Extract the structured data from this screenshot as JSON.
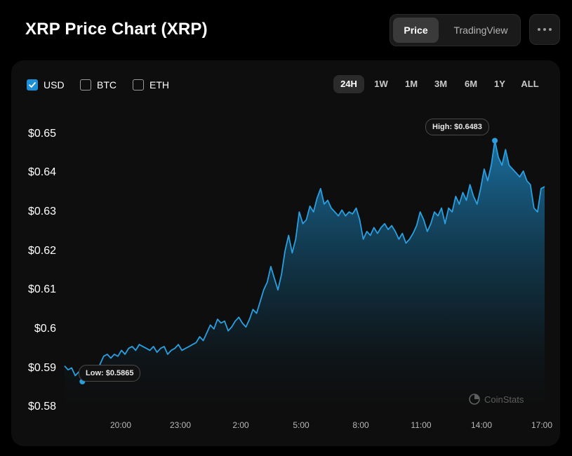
{
  "title": "XRP Price Chart (XRP)",
  "view_toggle": {
    "options": [
      "Price",
      "TradingView"
    ],
    "selected": "Price"
  },
  "more_icon": "ellipsis-icon",
  "currencies": [
    {
      "label": "USD",
      "checked": true
    },
    {
      "label": "BTC",
      "checked": false
    },
    {
      "label": "ETH",
      "checked": false
    }
  ],
  "ranges": [
    "24H",
    "1W",
    "1M",
    "3M",
    "6M",
    "1Y",
    "ALL"
  ],
  "active_range": "24H",
  "watermark": "CoinStats",
  "colors": {
    "line": "#2a9fe0",
    "accent": "#1d8fd6",
    "background": "#000000",
    "card": "#0e0e0e"
  },
  "chart_data": {
    "type": "area",
    "ylim": [
      0.58,
      0.65
    ],
    "y_ticks": [
      {
        "value": 0.65,
        "label": "$0.65"
      },
      {
        "value": 0.64,
        "label": "$0.64"
      },
      {
        "value": 0.63,
        "label": "$0.63"
      },
      {
        "value": 0.62,
        "label": "$0.62"
      },
      {
        "value": 0.61,
        "label": "$0.61"
      },
      {
        "value": 0.6,
        "label": "$0.6"
      },
      {
        "value": 0.59,
        "label": "$0.59"
      },
      {
        "value": 0.58,
        "label": "$0.58"
      }
    ],
    "x_ticks": [
      "20:00",
      "23:00",
      "2:00",
      "5:00",
      "8:00",
      "11:00",
      "14:00",
      "17:00"
    ],
    "x_start": "17:30",
    "x_end": "17:10",
    "high": {
      "label": "High: $0.6483",
      "value": 0.6483,
      "time": "14:15"
    },
    "low": {
      "label": "Low: $0.5865",
      "value": 0.5865,
      "time": "18:15"
    },
    "series": [
      {
        "values": [
          0.5905,
          0.5895,
          0.59,
          0.588,
          0.589,
          0.5865,
          0.589,
          0.5885,
          0.5895,
          0.589,
          0.591,
          0.593,
          0.5935,
          0.5925,
          0.5935,
          0.593,
          0.5945,
          0.5935,
          0.595,
          0.5955,
          0.5945,
          0.596,
          0.5955,
          0.595,
          0.5945,
          0.5955,
          0.594,
          0.595,
          0.5955,
          0.5935,
          0.5945,
          0.595,
          0.596,
          0.5945,
          0.595,
          0.5955,
          0.596,
          0.5965,
          0.598,
          0.597,
          0.599,
          0.601,
          0.6,
          0.6025,
          0.6015,
          0.602,
          0.5995,
          0.6005,
          0.602,
          0.603,
          0.6015,
          0.6005,
          0.6025,
          0.605,
          0.604,
          0.607,
          0.61,
          0.612,
          0.616,
          0.613,
          0.61,
          0.614,
          0.62,
          0.624,
          0.6195,
          0.623,
          0.63,
          0.627,
          0.628,
          0.6315,
          0.63,
          0.6335,
          0.636,
          0.632,
          0.633,
          0.631,
          0.63,
          0.629,
          0.6305,
          0.629,
          0.63,
          0.6295,
          0.631,
          0.628,
          0.623,
          0.625,
          0.624,
          0.626,
          0.6245,
          0.626,
          0.627,
          0.6255,
          0.6265,
          0.625,
          0.623,
          0.6245,
          0.622,
          0.623,
          0.6245,
          0.6265,
          0.63,
          0.628,
          0.625,
          0.627,
          0.63,
          0.629,
          0.631,
          0.627,
          0.631,
          0.63,
          0.634,
          0.632,
          0.635,
          0.633,
          0.637,
          0.634,
          0.632,
          0.636,
          0.641,
          0.638,
          0.642,
          0.6483,
          0.644,
          0.642,
          0.646,
          0.642,
          0.641,
          0.64,
          0.639,
          0.6405,
          0.638,
          0.637,
          0.631,
          0.63,
          0.636,
          0.6365
        ]
      }
    ]
  }
}
